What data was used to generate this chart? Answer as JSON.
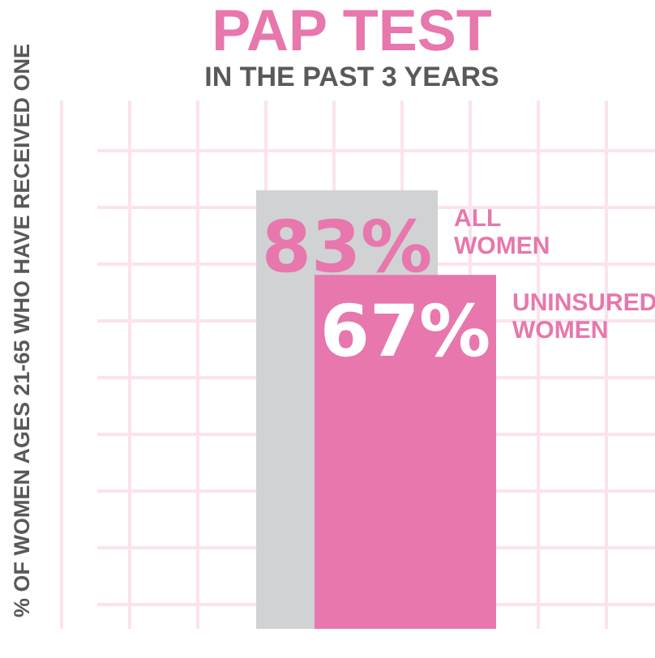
{
  "chart_data": {
    "type": "bar",
    "title": "PAP TEST",
    "subtitle": "IN THE PAST 3 YEARS",
    "ylabel": "% OF WOMEN AGES 21-65 WHO HAVE RECEIVED ONE",
    "categories": [
      null
    ],
    "series": [
      {
        "name": "ALL WOMEN",
        "color": "#d1d2d4",
        "values": [
          83
        ],
        "value_labels": [
          "83%"
        ]
      },
      {
        "name": "UNINSURED WOMEN",
        "color": "#e777ad",
        "values": [
          67
        ],
        "value_labels": [
          "67%"
        ]
      }
    ],
    "ylim": [
      0,
      100
    ],
    "grid": true
  }
}
